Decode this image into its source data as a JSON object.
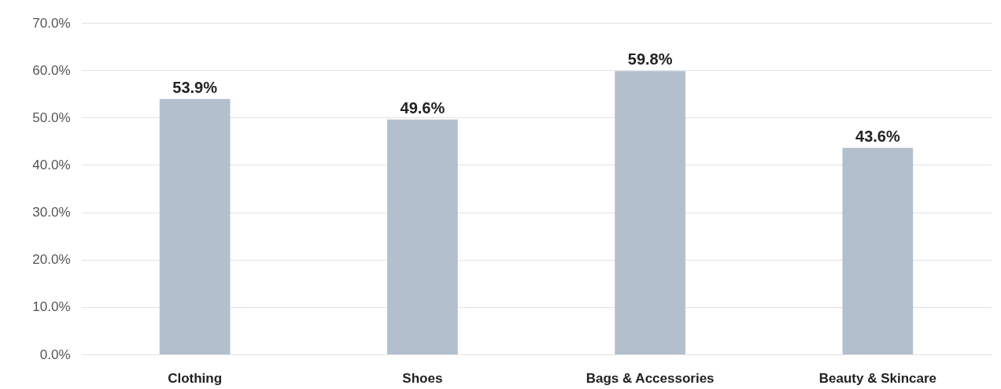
{
  "chart_data": {
    "type": "bar",
    "categories": [
      "Clothing",
      "Shoes",
      "Bags & Accessories",
      "Beauty & Skincare"
    ],
    "values": [
      53.9,
      49.6,
      59.8,
      43.6
    ],
    "value_labels": [
      "53.9%",
      "49.6%",
      "59.8%",
      "43.6%"
    ],
    "color": "#b3bfcd",
    "ylim": [
      0,
      70
    ],
    "yticks": [
      {
        "value": 0,
        "label": "0.0%"
      },
      {
        "value": 10,
        "label": "10.0%"
      },
      {
        "value": 20,
        "label": "20.0%"
      },
      {
        "value": 30,
        "label": "30.0%"
      },
      {
        "value": 40,
        "label": "40.0%"
      },
      {
        "value": 50,
        "label": "50.0%"
      },
      {
        "value": 60,
        "label": "60.0%"
      },
      {
        "value": 70,
        "label": "70.0%"
      }
    ],
    "grid": "y"
  }
}
